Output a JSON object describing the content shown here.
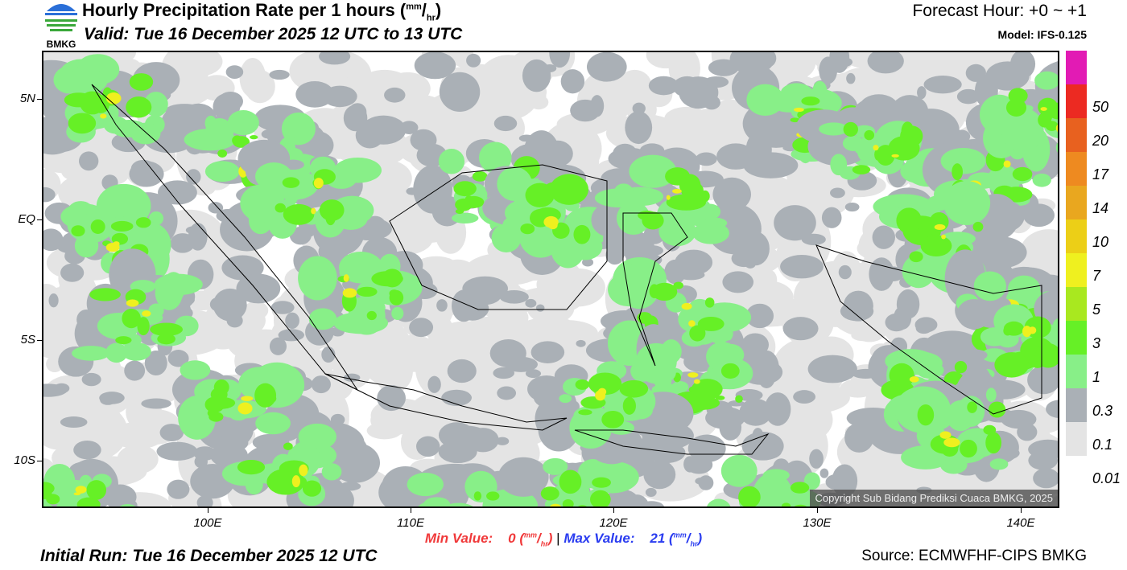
{
  "header": {
    "logo_text": "BMKG",
    "title": "Hourly Precipitation Rate per 1 hours (",
    "title_unit_num": "mm",
    "title_unit_den": "hr",
    "valid": "Valid: Tue 16 December 2025 12 UTC to 13 UTC",
    "forecast_hour": "Forecast Hour: +0 ~ +1",
    "model": "Model: IFS-0.125"
  },
  "map": {
    "lat_labels": [
      "5N",
      "EQ",
      "5S",
      "10S"
    ],
    "lon_labels": [
      "100E",
      "110E",
      "120E",
      "130E",
      "140E"
    ],
    "copyright": "Copyright Sub Bidang Prediksi Cuaca BMKG, 2025"
  },
  "legend": {
    "colors": [
      "#e21bb4",
      "#ec2a22",
      "#e8611f",
      "#ee8a20",
      "#e9a71f",
      "#eccf17",
      "#eff01f",
      "#a9e81f",
      "#66f026",
      "#88ef88",
      "#aab0b6",
      "#e4e4e4"
    ],
    "labels": [
      "50",
      "20",
      "17",
      "14",
      "10",
      "7",
      "5",
      "3",
      "1",
      "0.3",
      "0.1",
      "0.01"
    ]
  },
  "footer": {
    "min_label": "Min Value:",
    "min_value": "0",
    "max_label": "Max Value:",
    "max_value": "21",
    "unit_num": "mm",
    "unit_den": "hr",
    "initial_run": "Initial Run: Tue 16 December 2025 12 UTC",
    "source": "Source: ECMWFHF-CIPS BMKG"
  }
}
